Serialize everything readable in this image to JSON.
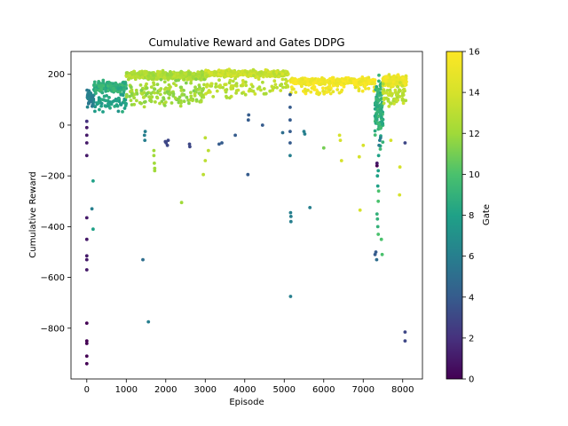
{
  "chart_data": {
    "type": "scatter",
    "title": "Cumulative Reward and Gates DDPG",
    "xlabel": "Episode",
    "ylabel": "Cumulative Reward",
    "xlim": [
      -400,
      8500
    ],
    "ylim": [
      -1000,
      290
    ],
    "xticks": [
      0,
      1000,
      2000,
      3000,
      4000,
      5000,
      6000,
      7000,
      8000
    ],
    "yticks": [
      -800,
      -600,
      -400,
      -200,
      0,
      200
    ],
    "xtick_labels": [
      "0",
      "1000",
      "2000",
      "3000",
      "4000",
      "5000",
      "6000",
      "7000",
      "8000"
    ],
    "ytick_labels": [
      "−800",
      "−600",
      "−400",
      "−200",
      "0",
      "200"
    ],
    "grid": false,
    "colorbar": {
      "label": "Gate",
      "range": [
        0,
        16
      ],
      "ticks": [
        0,
        2,
        4,
        6,
        8,
        10,
        12,
        14,
        16
      ],
      "tick_labels": [
        "0",
        "2",
        "4",
        "6",
        "8",
        "10",
        "12",
        "14",
        "16"
      ],
      "colormap": "viridis"
    },
    "bands": [
      {
        "x_start": 0,
        "x_end": 180,
        "y_mean": 105,
        "y_spread": 30,
        "gate": 6,
        "count": 60
      },
      {
        "x_start": 180,
        "x_end": 1000,
        "y_mean": 150,
        "y_spread": 20,
        "gate": 9,
        "count": 190
      },
      {
        "x_start": 200,
        "x_end": 1000,
        "y_mean": 90,
        "y_spread": 35,
        "gate": 8,
        "count": 60
      },
      {
        "x_start": 1000,
        "x_end": 3000,
        "y_mean": 195,
        "y_spread": 15,
        "gate": 12.5,
        "count": 380
      },
      {
        "x_start": 1000,
        "x_end": 3000,
        "y_mean": 125,
        "y_spread": 45,
        "gate": 12,
        "count": 160
      },
      {
        "x_start": 3000,
        "x_end": 5100,
        "y_mean": 203,
        "y_spread": 12,
        "gate": 13.5,
        "count": 380
      },
      {
        "x_start": 3000,
        "x_end": 5100,
        "y_mean": 150,
        "y_spread": 40,
        "gate": 13,
        "count": 90
      },
      {
        "x_start": 5150,
        "x_end": 7300,
        "y_mean": 172,
        "y_spread": 12,
        "gate": 15.6,
        "count": 380
      },
      {
        "x_start": 5150,
        "x_end": 7300,
        "y_mean": 140,
        "y_spread": 25,
        "gate": 15.3,
        "count": 60
      },
      {
        "x_start": 7300,
        "x_end": 7500,
        "y_mean": 60,
        "y_spread": 120,
        "gate": 9,
        "count": 120
      },
      {
        "x_start": 7500,
        "x_end": 8100,
        "y_mean": 175,
        "y_spread": 20,
        "gate": 15,
        "count": 200
      },
      {
        "x_start": 7500,
        "x_end": 8100,
        "y_mean": 120,
        "y_spread": 40,
        "gate": 13,
        "count": 60
      }
    ],
    "points": [
      {
        "x": 0,
        "y": -940,
        "gate": 0
      },
      {
        "x": 0,
        "y": -910,
        "gate": 0
      },
      {
        "x": 0,
        "y": -860,
        "gate": 0
      },
      {
        "x": 0,
        "y": -850,
        "gate": 0
      },
      {
        "x": 0,
        "y": -780,
        "gate": 0
      },
      {
        "x": 0,
        "y": -570,
        "gate": 1
      },
      {
        "x": 0,
        "y": -530,
        "gate": 1
      },
      {
        "x": 0,
        "y": -515,
        "gate": 1
      },
      {
        "x": 0,
        "y": -450,
        "gate": 1
      },
      {
        "x": 0,
        "y": -365,
        "gate": 1
      },
      {
        "x": 0,
        "y": -120,
        "gate": 1
      },
      {
        "x": 0,
        "y": -70,
        "gate": 1
      },
      {
        "x": 0,
        "y": -40,
        "gate": 1
      },
      {
        "x": 0,
        "y": -10,
        "gate": 1
      },
      {
        "x": 0,
        "y": 15,
        "gate": 2
      },
      {
        "x": 130,
        "y": -330,
        "gate": 6
      },
      {
        "x": 160,
        "y": -220,
        "gate": 8
      },
      {
        "x": 160,
        "y": -410,
        "gate": 8
      },
      {
        "x": 1420,
        "y": -530,
        "gate": 5
      },
      {
        "x": 1560,
        "y": -775,
        "gate": 6
      },
      {
        "x": 1460,
        "y": -40,
        "gate": 6
      },
      {
        "x": 1470,
        "y": -60,
        "gate": 6
      },
      {
        "x": 1480,
        "y": -25,
        "gate": 6
      },
      {
        "x": 1700,
        "y": -100,
        "gate": 12
      },
      {
        "x": 1700,
        "y": -120,
        "gate": 12
      },
      {
        "x": 1710,
        "y": -150,
        "gate": 12
      },
      {
        "x": 1720,
        "y": -170,
        "gate": 12
      },
      {
        "x": 1720,
        "y": -180,
        "gate": 12
      },
      {
        "x": 1990,
        "y": -65,
        "gate": 3
      },
      {
        "x": 2010,
        "y": -70,
        "gate": 3
      },
      {
        "x": 2040,
        "y": -80,
        "gate": 3
      },
      {
        "x": 2060,
        "y": -60,
        "gate": 3
      },
      {
        "x": 2400,
        "y": -305,
        "gate": 12
      },
      {
        "x": 2600,
        "y": -75,
        "gate": 3
      },
      {
        "x": 2610,
        "y": -85,
        "gate": 3
      },
      {
        "x": 2950,
        "y": -195,
        "gate": 13
      },
      {
        "x": 3000,
        "y": -140,
        "gate": 13
      },
      {
        "x": 3080,
        "y": -100,
        "gate": 13
      },
      {
        "x": 3000,
        "y": -50,
        "gate": 13
      },
      {
        "x": 3350,
        "y": -75,
        "gate": 4
      },
      {
        "x": 3420,
        "y": -70,
        "gate": 4
      },
      {
        "x": 3760,
        "y": -40,
        "gate": 4
      },
      {
        "x": 4080,
        "y": -195,
        "gate": 4
      },
      {
        "x": 4090,
        "y": 20,
        "gate": 4
      },
      {
        "x": 4100,
        "y": 40,
        "gate": 4
      },
      {
        "x": 4450,
        "y": 0,
        "gate": 4
      },
      {
        "x": 4960,
        "y": -30,
        "gate": 5
      },
      {
        "x": 5160,
        "y": -345,
        "gate": 6
      },
      {
        "x": 5170,
        "y": -360,
        "gate": 6
      },
      {
        "x": 5170,
        "y": -380,
        "gate": 6
      },
      {
        "x": 5160,
        "y": -675,
        "gate": 6
      },
      {
        "x": 5150,
        "y": -120,
        "gate": 6
      },
      {
        "x": 5150,
        "y": -70,
        "gate": 4
      },
      {
        "x": 5150,
        "y": -25,
        "gate": 4
      },
      {
        "x": 5150,
        "y": 20,
        "gate": 4
      },
      {
        "x": 5150,
        "y": 70,
        "gate": 4
      },
      {
        "x": 5150,
        "y": 120,
        "gate": 4
      },
      {
        "x": 5500,
        "y": -25,
        "gate": 6
      },
      {
        "x": 5520,
        "y": -35,
        "gate": 6
      },
      {
        "x": 5650,
        "y": -325,
        "gate": 6
      },
      {
        "x": 6000,
        "y": -90,
        "gate": 11
      },
      {
        "x": 6400,
        "y": -40,
        "gate": 14
      },
      {
        "x": 6420,
        "y": -60,
        "gate": 14
      },
      {
        "x": 6450,
        "y": -140,
        "gate": 14
      },
      {
        "x": 6900,
        "y": -125,
        "gate": 14
      },
      {
        "x": 6920,
        "y": -335,
        "gate": 14
      },
      {
        "x": 7000,
        "y": -80,
        "gate": 14
      },
      {
        "x": 7300,
        "y": -510,
        "gate": 4
      },
      {
        "x": 7320,
        "y": -500,
        "gate": 4
      },
      {
        "x": 7340,
        "y": -530,
        "gate": 5
      },
      {
        "x": 7350,
        "y": -350,
        "gate": 9
      },
      {
        "x": 7360,
        "y": -370,
        "gate": 9
      },
      {
        "x": 7370,
        "y": -400,
        "gate": 9
      },
      {
        "x": 7380,
        "y": -430,
        "gate": 10
      },
      {
        "x": 7380,
        "y": -300,
        "gate": 10
      },
      {
        "x": 7390,
        "y": -260,
        "gate": 10
      },
      {
        "x": 7350,
        "y": -160,
        "gate": 0
      },
      {
        "x": 7350,
        "y": -150,
        "gate": 1
      },
      {
        "x": 7360,
        "y": -200,
        "gate": 8
      },
      {
        "x": 7370,
        "y": -240,
        "gate": 8
      },
      {
        "x": 7380,
        "y": -180,
        "gate": 8
      },
      {
        "x": 7390,
        "y": -120,
        "gate": 8
      },
      {
        "x": 7400,
        "y": -80,
        "gate": 6
      },
      {
        "x": 7420,
        "y": -60,
        "gate": 6
      },
      {
        "x": 7440,
        "y": -50,
        "gate": 6
      },
      {
        "x": 7460,
        "y": -450,
        "gate": 10
      },
      {
        "x": 7480,
        "y": -510,
        "gate": 10
      },
      {
        "x": 7700,
        "y": -60,
        "gate": 14
      },
      {
        "x": 7920,
        "y": -275,
        "gate": 14
      },
      {
        "x": 7930,
        "y": -165,
        "gate": 14
      },
      {
        "x": 8060,
        "y": -815,
        "gate": 3
      },
      {
        "x": 8060,
        "y": -850,
        "gate": 3
      },
      {
        "x": 8060,
        "y": -70,
        "gate": 3
      }
    ]
  }
}
